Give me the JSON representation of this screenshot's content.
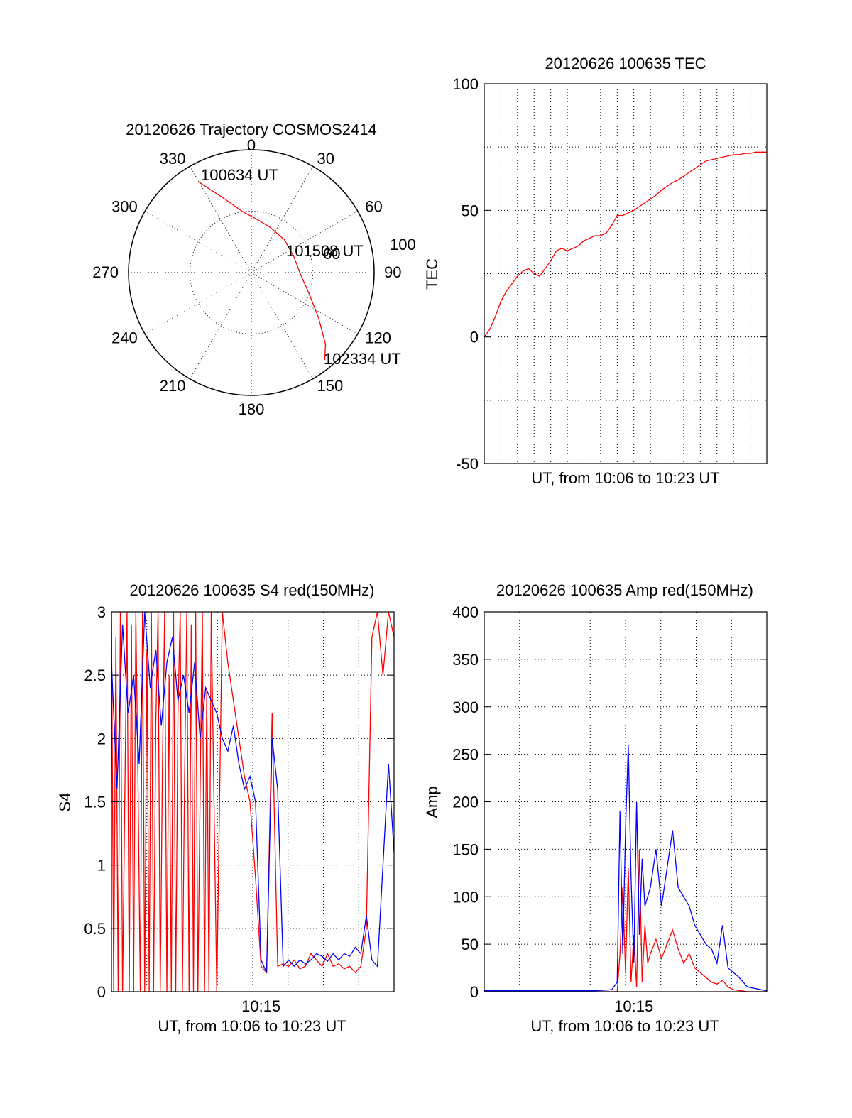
{
  "colors": {
    "red": "#ff0000",
    "blue": "#0000ff",
    "axis": "#000000"
  },
  "chart_data": [
    {
      "type": "polar",
      "title": "20120626 Trajectory COSMOS2414",
      "angle_labels": [
        "0",
        "30",
        "60",
        "90",
        "120",
        "150",
        "180",
        "210",
        "240",
        "270",
        "300",
        "330"
      ],
      "radial_labels": [
        "100",
        "60"
      ],
      "annotations": {
        "start": "100634 UT",
        "mid": "101508 UT",
        "end": "102334 UT"
      },
      "series": [
        {
          "color": "#ff0000",
          "points": [
            {
              "az": 330,
              "r": 85
            },
            {
              "az": 340,
              "r": 64
            },
            {
              "az": 352,
              "r": 50
            },
            {
              "az": 5,
              "r": 44
            },
            {
              "az": 22,
              "r": 40
            },
            {
              "az": 45,
              "r": 38
            },
            {
              "az": 70,
              "r": 37
            },
            {
              "az": 92,
              "r": 40
            },
            {
              "az": 110,
              "r": 50
            },
            {
              "az": 124,
              "r": 66
            },
            {
              "az": 134,
              "r": 84
            },
            {
              "az": 140,
              "r": 93
            }
          ]
        }
      ]
    },
    {
      "type": "line",
      "title": "20120626 100635 TEC",
      "xlabel": "UT, from 10:06 to 10:23 UT",
      "ylabel": "TEC",
      "xlim": [
        0,
        1020
      ],
      "ylim": [
        -50,
        100
      ],
      "yticks": [
        "100",
        "50",
        "0",
        "-50"
      ],
      "xticks": [],
      "grid": true,
      "series": [
        {
          "color": "#ff0000",
          "x": [
            0,
            20,
            40,
            60,
            80,
            100,
            120,
            140,
            160,
            180,
            200,
            220,
            240,
            260,
            280,
            300,
            320,
            340,
            360,
            380,
            400,
            420,
            440,
            460,
            480,
            500,
            520,
            540,
            560,
            580,
            600,
            620,
            640,
            660,
            680,
            700,
            720,
            740,
            760,
            780,
            800,
            820,
            840,
            860,
            880,
            900,
            920,
            940,
            960,
            980,
            1000,
            1020
          ],
          "y": [
            0,
            3,
            8,
            14,
            18,
            21,
            24,
            26,
            27,
            25,
            24,
            27,
            30,
            34,
            35,
            34,
            35,
            36,
            38,
            39,
            40,
            40,
            41,
            44,
            48,
            48,
            49,
            50,
            51.5,
            53,
            54.5,
            56,
            58,
            59.5,
            61,
            62,
            63.5,
            65,
            66.5,
            68,
            69.5,
            70,
            70.5,
            71,
            71.5,
            72,
            72,
            72.5,
            72.5,
            73,
            73,
            73
          ]
        }
      ]
    },
    {
      "type": "line",
      "title": "20120626 100635 S4 red(150MHz)",
      "xlabel": "UT, from 10:06 to 10:23 UT",
      "ylabel": "S4",
      "xlim": [
        0,
        1020
      ],
      "ylim": [
        0,
        3
      ],
      "yticks": [
        "0",
        "0.5",
        "1",
        "1.5",
        "2",
        "2.5",
        "3"
      ],
      "xticks": [
        {
          "value": 540,
          "label": "10:15"
        }
      ],
      "grid": true,
      "series": [
        {
          "color": "#ff0000",
          "x": [
            0,
            8,
            16,
            24,
            32,
            40,
            48,
            56,
            64,
            72,
            80,
            88,
            96,
            104,
            112,
            120,
            128,
            136,
            144,
            152,
            160,
            168,
            176,
            184,
            192,
            200,
            208,
            216,
            224,
            232,
            240,
            248,
            256,
            264,
            272,
            280,
            288,
            296,
            304,
            312,
            320,
            328,
            336,
            344,
            352,
            360,
            380,
            400,
            420,
            440,
            460,
            480,
            500,
            520,
            540,
            560,
            580,
            600,
            620,
            640,
            660,
            680,
            700,
            720,
            740,
            760,
            780,
            800,
            820,
            840,
            860,
            880,
            900,
            920,
            940,
            960,
            980,
            1000,
            1020
          ],
          "y": [
            3,
            0,
            2.8,
            0,
            3,
            0,
            1.5,
            3,
            0,
            2.9,
            0,
            3,
            1.6,
            0,
            3,
            0,
            2.7,
            0,
            3,
            0,
            2.1,
            3,
            0,
            1.8,
            3,
            0,
            2.5,
            0,
            3,
            0,
            2.2,
            3,
            0,
            1.7,
            3,
            0,
            2.9,
            0,
            3,
            0,
            1.6,
            3,
            0,
            2.4,
            0,
            3,
            0,
            3,
            2.6,
            2.3,
            2.0,
            1.7,
            1.5,
            0.9,
            0.2,
            0.15,
            2.2,
            0.2,
            0.22,
            0.2,
            0.25,
            0.18,
            0.2,
            0.3,
            0.25,
            0.2,
            0.3,
            0.2,
            0.22,
            0.18,
            0.2,
            0.15,
            0.2,
            0.5,
            2.8,
            3,
            2.5,
            3,
            2.8
          ]
        },
        {
          "color": "#0000ff",
          "x": [
            0,
            20,
            40,
            60,
            80,
            100,
            120,
            140,
            160,
            180,
            200,
            220,
            240,
            260,
            280,
            300,
            320,
            340,
            360,
            380,
            400,
            420,
            440,
            460,
            480,
            500,
            520,
            540,
            560,
            580,
            600,
            620,
            640,
            660,
            680,
            700,
            720,
            740,
            760,
            780,
            800,
            820,
            840,
            860,
            880,
            900,
            920,
            940,
            960,
            980,
            1000,
            1020
          ],
          "y": [
            2.6,
            1.6,
            2.9,
            2.2,
            2.5,
            1.8,
            3,
            2.4,
            2.7,
            2.1,
            2.6,
            2.8,
            2.3,
            2.5,
            2.2,
            2.6,
            2.0,
            2.4,
            2.3,
            2.2,
            2.0,
            1.9,
            2.1,
            1.8,
            1.6,
            1.7,
            1.5,
            0.25,
            0.15,
            2.0,
            1.6,
            0.2,
            0.25,
            0.2,
            0.25,
            0.22,
            0.25,
            0.3,
            0.28,
            0.24,
            0.3,
            0.25,
            0.3,
            0.28,
            0.35,
            0.3,
            0.6,
            0.25,
            0.2,
            1.0,
            1.8,
            1.1
          ]
        }
      ]
    },
    {
      "type": "line",
      "title": "20120626 100635 Amp red(150MHz)",
      "xlabel": "UT, from 10:06 to 10:23 UT",
      "ylabel": "Amp",
      "xlim": [
        0,
        1020
      ],
      "ylim": [
        0,
        400
      ],
      "yticks": [
        "0",
        "50",
        "100",
        "150",
        "200",
        "250",
        "300",
        "350",
        "400"
      ],
      "xticks": [
        {
          "value": 540,
          "label": "10:15"
        }
      ],
      "grid": true,
      "series": [
        {
          "color": "#ff0000",
          "x": [
            0,
            100,
            200,
            300,
            400,
            480,
            490,
            500,
            510,
            520,
            530,
            540,
            550,
            560,
            570,
            580,
            590,
            600,
            620,
            640,
            660,
            680,
            700,
            720,
            740,
            760,
            780,
            800,
            820,
            840,
            860,
            880,
            900,
            950,
            1020
          ],
          "y": [
            0,
            0,
            0,
            0,
            0,
            0,
            40,
            110,
            20,
            130,
            10,
            60,
            5,
            150,
            10,
            70,
            30,
            40,
            55,
            35,
            50,
            65,
            45,
            30,
            40,
            25,
            20,
            15,
            10,
            8,
            12,
            5,
            2,
            0,
            0
          ]
        },
        {
          "color": "#0000ff",
          "x": [
            0,
            100,
            200,
            300,
            400,
            460,
            480,
            490,
            500,
            510,
            520,
            530,
            540,
            550,
            560,
            570,
            580,
            600,
            620,
            640,
            660,
            680,
            700,
            720,
            740,
            760,
            780,
            800,
            820,
            840,
            860,
            880,
            900,
            920,
            950,
            1000,
            1020
          ],
          "y": [
            1,
            1,
            1,
            1,
            1,
            2,
            10,
            190,
            40,
            170,
            260,
            120,
            30,
            200,
            60,
            140,
            90,
            110,
            150,
            90,
            130,
            170,
            110,
            100,
            90,
            70,
            60,
            50,
            45,
            30,
            70,
            25,
            20,
            15,
            5,
            2,
            1
          ]
        }
      ]
    }
  ]
}
